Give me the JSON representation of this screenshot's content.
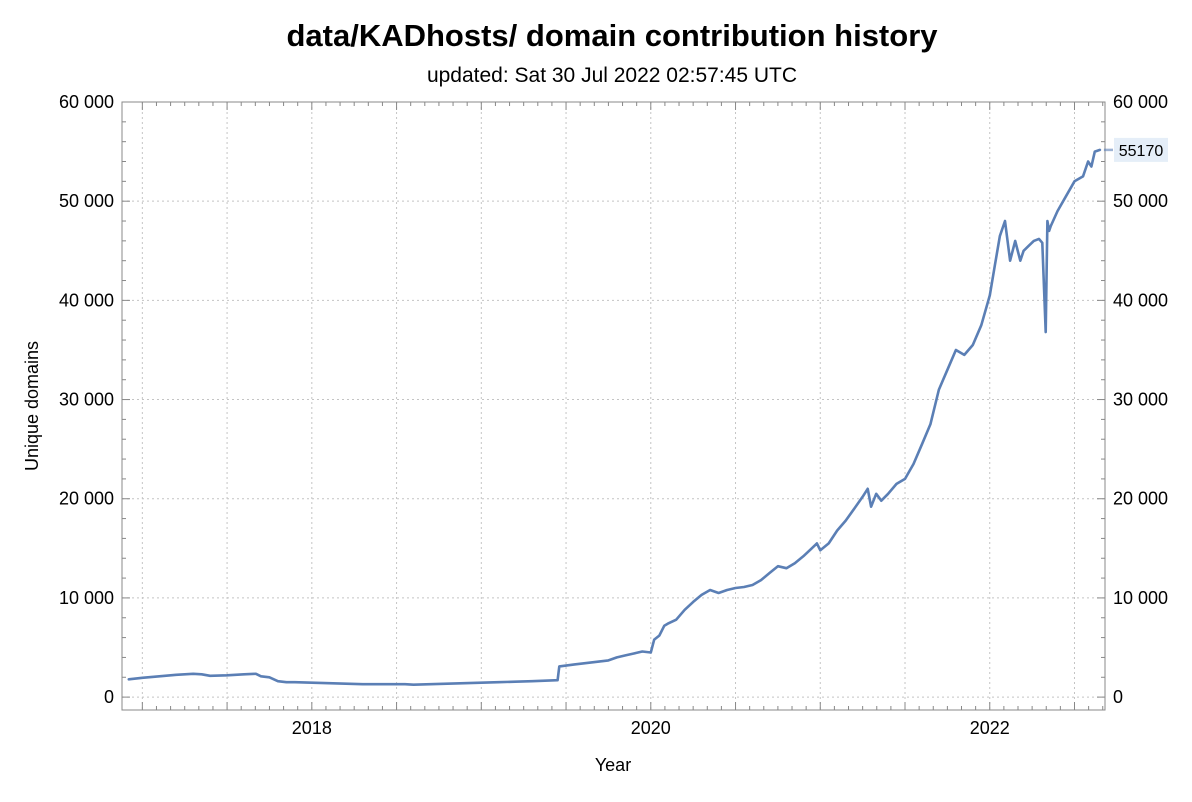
{
  "chart_data": {
    "type": "line",
    "title": "data/KADhosts/ domain contribution history",
    "subtitle": "updated: Sat 30 Jul 2022 02:57:45 UTC",
    "xlabel": "Year",
    "ylabel": "Unique domains",
    "xlim": [
      2016.88,
      2022.68
    ],
    "ylim": [
      -1300,
      60000
    ],
    "x_ticks": [
      2018,
      2020,
      2022
    ],
    "x_tick_labels": [
      "2018",
      "2020",
      "2022"
    ],
    "y_ticks": [
      0,
      10000,
      20000,
      30000,
      40000,
      50000,
      60000
    ],
    "y_tick_labels": [
      "0",
      "10 000",
      "20 000",
      "30 000",
      "40 000",
      "50 000",
      "60 000"
    ],
    "y_ticks_right": [
      0,
      10000,
      20000,
      30000,
      40000,
      50000,
      60000
    ],
    "y_tick_labels_right": [
      "0",
      "10 000",
      "20 000",
      "30 000",
      "40 000",
      "50 000",
      "60 000"
    ],
    "grid": true,
    "end_value_label": "55170",
    "colors": {
      "line": "#5b7fb5",
      "end_label_bg": "#e5eef8",
      "grid": "#c4c4c4",
      "frame": "#888888"
    },
    "series": [
      {
        "x": [
          2016.92,
          2017.0,
          2017.1,
          2017.2,
          2017.3,
          2017.35,
          2017.4,
          2017.5,
          2017.6,
          2017.67,
          2017.7,
          2017.75,
          2017.8,
          2017.85,
          2017.9,
          2018.0,
          2018.1,
          2018.2,
          2018.3,
          2018.5,
          2018.55,
          2018.6,
          2018.7,
          2018.8,
          2018.9,
          2019.0,
          2019.1,
          2019.2,
          2019.3,
          2019.45,
          2019.46,
          2019.55,
          2019.6,
          2019.7,
          2019.75,
          2019.8,
          2019.85,
          2019.9,
          2019.95,
          2020.0,
          2020.02,
          2020.05,
          2020.08,
          2020.1,
          2020.15,
          2020.2,
          2020.25,
          2020.3,
          2020.35,
          2020.4,
          2020.45,
          2020.5,
          2020.55,
          2020.6,
          2020.65,
          2020.7,
          2020.75,
          2020.8,
          2020.85,
          2020.9,
          2020.95,
          2020.98,
          2021.0,
          2021.05,
          2021.1,
          2021.15,
          2021.2,
          2021.25,
          2021.28,
          2021.3,
          2021.33,
          2021.36,
          2021.4,
          2021.45,
          2021.5,
          2021.55,
          2021.6,
          2021.65,
          2021.7,
          2021.75,
          2021.8,
          2021.85,
          2021.9,
          2021.95,
          2022.0,
          2022.03,
          2022.06,
          2022.09,
          2022.12,
          2022.15,
          2022.18,
          2022.2,
          2022.23,
          2022.26,
          2022.29,
          2022.31,
          2022.33,
          2022.34,
          2022.35,
          2022.36,
          2022.4,
          2022.45,
          2022.5,
          2022.55,
          2022.58,
          2022.6,
          2022.62,
          2022.65
        ],
        "y": [
          1800,
          1950,
          2100,
          2250,
          2350,
          2300,
          2150,
          2200,
          2300,
          2350,
          2100,
          2000,
          1600,
          1500,
          1500,
          1450,
          1400,
          1350,
          1300,
          1300,
          1300,
          1250,
          1300,
          1350,
          1400,
          1450,
          1500,
          1550,
          1600,
          1700,
          3100,
          3300,
          3400,
          3600,
          3700,
          4000,
          4200,
          4400,
          4600,
          4500,
          5800,
          6200,
          7200,
          7400,
          7800,
          8800,
          9600,
          10300,
          10800,
          10500,
          10800,
          11000,
          11100,
          11300,
          11800,
          12500,
          13200,
          13000,
          13500,
          14200,
          15000,
          15500,
          14800,
          15500,
          16800,
          17800,
          19000,
          20200,
          21000,
          19200,
          20500,
          19800,
          20500,
          21500,
          22000,
          23500,
          25500,
          27500,
          31000,
          33000,
          35000,
          34500,
          35500,
          37500,
          40500,
          43500,
          46500,
          48000,
          44000,
          46000,
          44000,
          45000,
          45500,
          46000,
          46200,
          45800,
          36800,
          48000,
          47000,
          47500,
          49000,
          50500,
          52000,
          52500,
          54000,
          53500,
          55000,
          55170
        ]
      }
    ]
  }
}
